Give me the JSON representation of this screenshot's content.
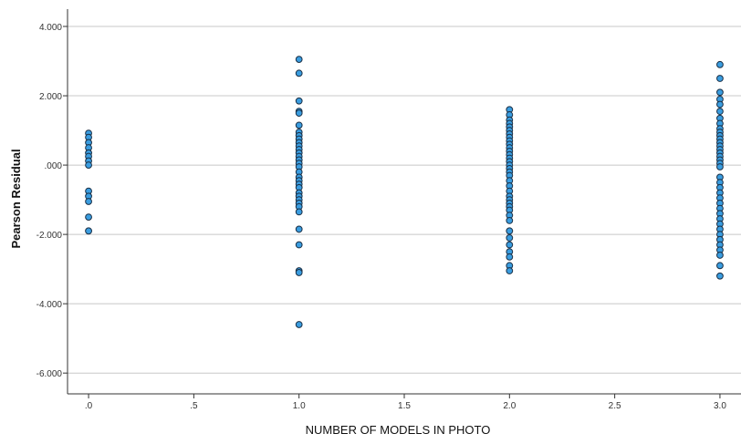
{
  "chart_data": {
    "type": "scatter",
    "title": "",
    "xlabel": "NUMBER OF MODELS IN PHOTO",
    "ylabel": "Pearson Residual",
    "xlim": [
      -0.1,
      3.1
    ],
    "ylim": [
      -6.6,
      4.5
    ],
    "grid": "horizontal",
    "legend": "none",
    "colors": {
      "marker_fill": "#3a9de0",
      "marker_edge": "#1a2f45",
      "grid": "#c8c8c8",
      "axis": "#333333"
    },
    "x_ticks": [
      {
        "value": 0.0,
        "label": ".0"
      },
      {
        "value": 0.5,
        "label": ".5"
      },
      {
        "value": 1.0,
        "label": "1.0"
      },
      {
        "value": 1.5,
        "label": "1.5"
      },
      {
        "value": 2.0,
        "label": "2.0"
      },
      {
        "value": 2.5,
        "label": "2.5"
      },
      {
        "value": 3.0,
        "label": "3.0"
      }
    ],
    "y_ticks": [
      {
        "value": 4,
        "label": "4.000"
      },
      {
        "value": 2,
        "label": "2.000"
      },
      {
        "value": 0,
        "label": ".000"
      },
      {
        "value": -2,
        "label": "-2.000"
      },
      {
        "value": -4,
        "label": "-4.000"
      },
      {
        "value": -6,
        "label": "-6.000"
      }
    ],
    "points": [
      {
        "x": 0,
        "y": 0.92
      },
      {
        "x": 0,
        "y": 0.8
      },
      {
        "x": 0,
        "y": 0.65
      },
      {
        "x": 0,
        "y": 0.5
      },
      {
        "x": 0,
        "y": 0.35
      },
      {
        "x": 0,
        "y": 0.25
      },
      {
        "x": 0,
        "y": 0.12
      },
      {
        "x": 0,
        "y": 0.0
      },
      {
        "x": 0,
        "y": -0.75
      },
      {
        "x": 0,
        "y": -0.9
      },
      {
        "x": 0,
        "y": -1.05
      },
      {
        "x": 0,
        "y": -1.5
      },
      {
        "x": 0,
        "y": -1.9
      },
      {
        "x": 1,
        "y": 3.05
      },
      {
        "x": 1,
        "y": 2.65
      },
      {
        "x": 1,
        "y": 1.85
      },
      {
        "x": 1,
        "y": 1.55
      },
      {
        "x": 1,
        "y": 1.5
      },
      {
        "x": 1,
        "y": 1.15
      },
      {
        "x": 1,
        "y": 0.95
      },
      {
        "x": 1,
        "y": 0.85
      },
      {
        "x": 1,
        "y": 0.75
      },
      {
        "x": 1,
        "y": 0.65
      },
      {
        "x": 1,
        "y": 0.55
      },
      {
        "x": 1,
        "y": 0.45
      },
      {
        "x": 1,
        "y": 0.35
      },
      {
        "x": 1,
        "y": 0.25
      },
      {
        "x": 1,
        "y": 0.15
      },
      {
        "x": 1,
        "y": 0.05
      },
      {
        "x": 1,
        "y": -0.05
      },
      {
        "x": 1,
        "y": -0.2
      },
      {
        "x": 1,
        "y": -0.35
      },
      {
        "x": 1,
        "y": -0.45
      },
      {
        "x": 1,
        "y": -0.55
      },
      {
        "x": 1,
        "y": -0.65
      },
      {
        "x": 1,
        "y": -0.8
      },
      {
        "x": 1,
        "y": -0.9
      },
      {
        "x": 1,
        "y": -1.0
      },
      {
        "x": 1,
        "y": -1.1
      },
      {
        "x": 1,
        "y": -1.2
      },
      {
        "x": 1,
        "y": -1.35
      },
      {
        "x": 1,
        "y": -1.85
      },
      {
        "x": 1,
        "y": -2.3
      },
      {
        "x": 1,
        "y": -3.05
      },
      {
        "x": 1,
        "y": -3.1
      },
      {
        "x": 1,
        "y": -4.6
      },
      {
        "x": 2,
        "y": 1.6
      },
      {
        "x": 2,
        "y": 1.45
      },
      {
        "x": 2,
        "y": 1.3
      },
      {
        "x": 2,
        "y": 1.2
      },
      {
        "x": 2,
        "y": 1.1
      },
      {
        "x": 2,
        "y": 1.0
      },
      {
        "x": 2,
        "y": 0.9
      },
      {
        "x": 2,
        "y": 0.8
      },
      {
        "x": 2,
        "y": 0.7
      },
      {
        "x": 2,
        "y": 0.6
      },
      {
        "x": 2,
        "y": 0.5
      },
      {
        "x": 2,
        "y": 0.4
      },
      {
        "x": 2,
        "y": 0.3
      },
      {
        "x": 2,
        "y": 0.2
      },
      {
        "x": 2,
        "y": 0.1
      },
      {
        "x": 2,
        "y": 0.0
      },
      {
        "x": 2,
        "y": -0.1
      },
      {
        "x": 2,
        "y": -0.2
      },
      {
        "x": 2,
        "y": -0.3
      },
      {
        "x": 2,
        "y": -0.45
      },
      {
        "x": 2,
        "y": -0.6
      },
      {
        "x": 2,
        "y": -0.75
      },
      {
        "x": 2,
        "y": -0.9
      },
      {
        "x": 2,
        "y": -1.0
      },
      {
        "x": 2,
        "y": -1.1
      },
      {
        "x": 2,
        "y": -1.2
      },
      {
        "x": 2,
        "y": -1.3
      },
      {
        "x": 2,
        "y": -1.45
      },
      {
        "x": 2,
        "y": -1.6
      },
      {
        "x": 2,
        "y": -1.9
      },
      {
        "x": 2,
        "y": -2.1
      },
      {
        "x": 2,
        "y": -2.3
      },
      {
        "x": 2,
        "y": -2.5
      },
      {
        "x": 2,
        "y": -2.65
      },
      {
        "x": 2,
        "y": -2.9
      },
      {
        "x": 2,
        "y": -3.05
      },
      {
        "x": 3,
        "y": 2.9
      },
      {
        "x": 3,
        "y": 2.5
      },
      {
        "x": 3,
        "y": 2.1
      },
      {
        "x": 3,
        "y": 1.9
      },
      {
        "x": 3,
        "y": 1.75
      },
      {
        "x": 3,
        "y": 1.55
      },
      {
        "x": 3,
        "y": 1.35
      },
      {
        "x": 3,
        "y": 1.2
      },
      {
        "x": 3,
        "y": 1.05
      },
      {
        "x": 3,
        "y": 0.95
      },
      {
        "x": 3,
        "y": 0.85
      },
      {
        "x": 3,
        "y": 0.75
      },
      {
        "x": 3,
        "y": 0.65
      },
      {
        "x": 3,
        "y": 0.55
      },
      {
        "x": 3,
        "y": 0.45
      },
      {
        "x": 3,
        "y": 0.35
      },
      {
        "x": 3,
        "y": 0.25
      },
      {
        "x": 3,
        "y": 0.15
      },
      {
        "x": 3,
        "y": 0.05
      },
      {
        "x": 3,
        "y": -0.05
      },
      {
        "x": 3,
        "y": -0.35
      },
      {
        "x": 3,
        "y": -0.5
      },
      {
        "x": 3,
        "y": -0.65
      },
      {
        "x": 3,
        "y": -0.8
      },
      {
        "x": 3,
        "y": -0.95
      },
      {
        "x": 3,
        "y": -1.1
      },
      {
        "x": 3,
        "y": -1.25
      },
      {
        "x": 3,
        "y": -1.4
      },
      {
        "x": 3,
        "y": -1.55
      },
      {
        "x": 3,
        "y": -1.7
      },
      {
        "x": 3,
        "y": -1.85
      },
      {
        "x": 3,
        "y": -2.0
      },
      {
        "x": 3,
        "y": -2.15
      },
      {
        "x": 3,
        "y": -2.3
      },
      {
        "x": 3,
        "y": -2.45
      },
      {
        "x": 3,
        "y": -2.6
      },
      {
        "x": 3,
        "y": -2.9
      },
      {
        "x": 3,
        "y": -3.2
      }
    ]
  }
}
